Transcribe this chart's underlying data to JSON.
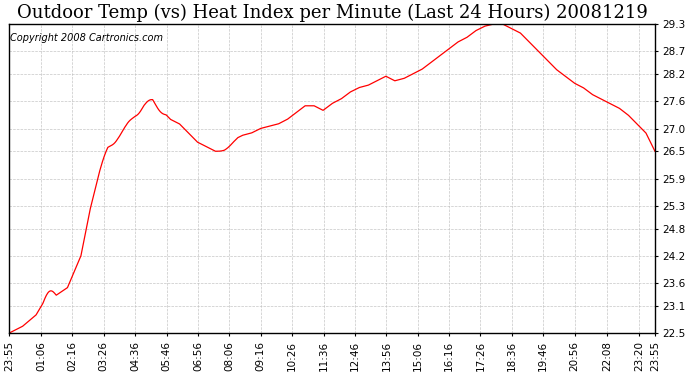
{
  "title": "Outdoor Temp (vs) Heat Index per Minute (Last 24 Hours) 20081219",
  "copyright": "Copyright 2008 Cartronics.com",
  "line_color": "#ff0000",
  "bg_color": "#ffffff",
  "plot_bg_color": "#ffffff",
  "grid_color": "#c0c0c0",
  "grid_style": "--",
  "yticks": [
    22.5,
    23.1,
    23.6,
    24.2,
    24.8,
    25.3,
    25.9,
    26.5,
    27.0,
    27.6,
    28.2,
    28.7,
    29.3
  ],
  "ylim": [
    22.5,
    29.3
  ],
  "xtick_labels": [
    "23:55",
    "01:06",
    "02:16",
    "03:26",
    "04:36",
    "05:46",
    "06:56",
    "08:06",
    "09:16",
    "10:26",
    "11:36",
    "12:46",
    "13:56",
    "15:06",
    "16:16",
    "17:26",
    "18:36",
    "19:46",
    "20:56",
    "22:08",
    "23:20",
    "23:55"
  ],
  "xtick_positions": [
    0,
    71,
    141,
    211,
    281,
    351,
    421,
    491,
    561,
    631,
    701,
    771,
    841,
    911,
    981,
    1051,
    1121,
    1191,
    1261,
    1333,
    1405,
    1440
  ],
  "key_x": [
    0,
    10,
    30,
    60,
    75,
    100,
    130,
    160,
    180,
    200,
    220,
    240,
    260,
    280,
    300,
    320,
    340,
    360,
    380,
    400,
    420,
    440,
    460,
    480,
    500,
    520,
    540,
    560,
    580,
    600,
    620,
    640,
    660,
    680,
    700,
    720,
    740,
    760,
    780,
    800,
    820,
    840,
    860,
    880,
    900,
    920,
    940,
    960,
    980,
    1000,
    1020,
    1040,
    1060,
    1080,
    1100,
    1120,
    1140,
    1160,
    1180,
    1200,
    1220,
    1240,
    1260,
    1280,
    1300,
    1320,
    1340,
    1360,
    1380,
    1400,
    1420,
    1440
  ],
  "key_y": [
    22.5,
    22.55,
    22.65,
    22.9,
    23.15,
    23.3,
    23.5,
    24.2,
    25.2,
    26.0,
    26.55,
    26.8,
    27.0,
    27.3,
    27.5,
    27.6,
    27.4,
    27.2,
    27.1,
    26.9,
    26.7,
    26.6,
    26.5,
    26.6,
    26.75,
    26.85,
    26.9,
    27.0,
    27.05,
    27.1,
    27.2,
    27.35,
    27.5,
    27.5,
    27.4,
    27.55,
    27.65,
    27.8,
    27.9,
    27.95,
    28.05,
    28.15,
    28.05,
    28.1,
    28.2,
    28.3,
    28.45,
    28.6,
    28.75,
    28.9,
    29.0,
    29.15,
    29.25,
    29.3,
    29.3,
    29.2,
    29.1,
    28.9,
    28.7,
    28.5,
    28.3,
    28.15,
    28.0,
    27.9,
    27.75,
    27.65,
    27.55,
    27.45,
    27.3,
    27.1,
    26.9,
    26.5
  ],
  "title_fontsize": 13,
  "tick_fontsize": 7.5,
  "copyright_fontsize": 7
}
